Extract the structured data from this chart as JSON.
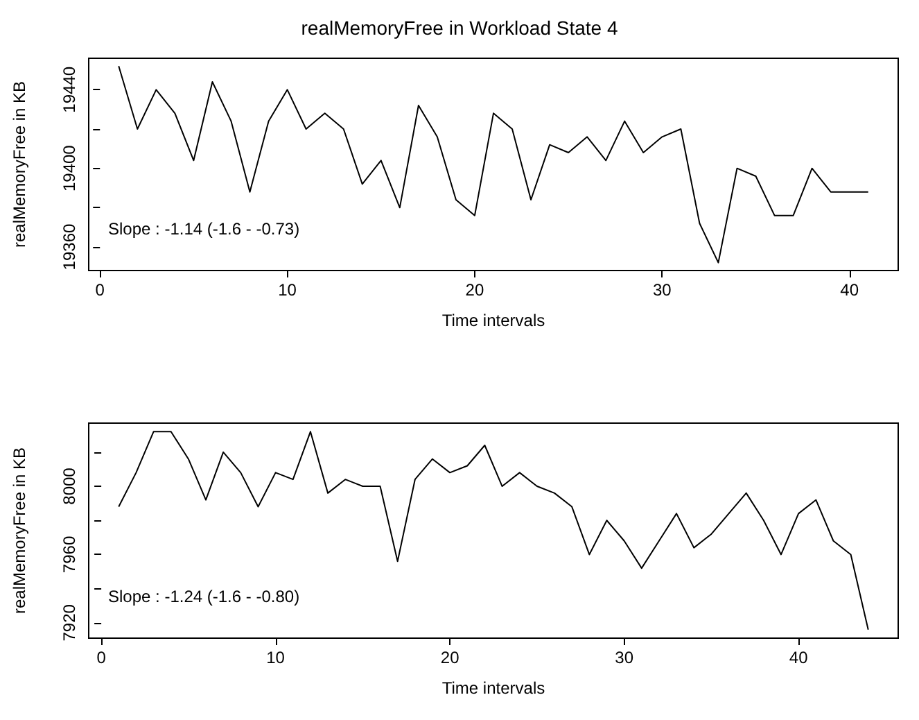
{
  "chart_data": [
    {
      "type": "line",
      "title": "realMemoryFree in Workload State 4",
      "xlabel": "Time intervals",
      "ylabel": "realMemoryFree in KB",
      "marker": "none",
      "x": [
        1,
        2,
        3,
        4,
        5,
        6,
        7,
        8,
        9,
        10,
        11,
        12,
        13,
        14,
        15,
        16,
        17,
        18,
        19,
        20,
        21,
        22,
        23,
        24,
        25,
        26,
        27,
        28,
        29,
        30,
        31,
        32,
        33,
        34,
        35,
        36,
        37,
        38,
        39,
        40,
        41
      ],
      "series": [
        {
          "color": "#000000",
          "values": [
            19452,
            19420,
            19440,
            19428,
            19404,
            19444,
            19424,
            19388,
            19424,
            19440,
            19420,
            19428,
            19420,
            19392,
            19404,
            19380,
            19432,
            19416,
            19384,
            19376,
            19428,
            19420,
            19384,
            19412,
            19408,
            19416,
            19404,
            19424,
            19408,
            19416,
            19420,
            19372,
            19352,
            19400,
            19396,
            19376,
            19376,
            19400,
            19388,
            19388,
            19388
          ]
        }
      ],
      "xlim": [
        -0.6,
        42.6
      ],
      "ylim": [
        19348,
        19456
      ],
      "xticks": [
        0,
        10,
        20,
        30,
        40
      ],
      "yticks": [
        19360,
        {
          "value": 19380,
          "label": null
        },
        19400,
        {
          "value": 19420,
          "label": null
        },
        19440
      ],
      "annotations": [
        "Slope : -1.14 (-1.6 - -0.73)"
      ]
    },
    {
      "type": "line",
      "xlabel": "Time intervals",
      "ylabel": "realMemoryFree in KB",
      "marker": "none",
      "x": [
        1,
        2,
        3,
        4,
        5,
        6,
        7,
        8,
        9,
        10,
        11,
        12,
        13,
        14,
        15,
        16,
        17,
        18,
        19,
        20,
        21,
        22,
        23,
        24,
        25,
        26,
        27,
        28,
        29,
        30,
        31,
        32,
        33,
        34,
        35,
        36,
        37,
        38,
        39,
        40,
        41,
        42,
        43,
        44
      ],
      "series": [
        {
          "color": "#000000",
          "values": [
            7988,
            8008,
            8032,
            8032,
            8016,
            7992,
            8020,
            8008,
            7988,
            8008,
            8004,
            8032,
            7996,
            8004,
            8000,
            8000,
            7956,
            8004,
            8016,
            8008,
            8012,
            8024,
            8000,
            8008,
            8000,
            7996,
            7988,
            7960,
            7980,
            7968,
            7952,
            7968,
            7984,
            7964,
            7972,
            7984,
            7996,
            7980,
            7960,
            7984,
            7992,
            7968,
            7960,
            7916
          ]
        }
      ],
      "xlim": [
        -0.72,
        45.72
      ],
      "ylim": [
        7911,
        8037
      ],
      "xticks": [
        0,
        10,
        20,
        30,
        40
      ],
      "yticks": [
        7920,
        {
          "value": 7940,
          "label": null
        },
        7960,
        {
          "value": 7980,
          "label": null
        },
        8000,
        {
          "value": 8020,
          "label": null
        }
      ],
      "annotations": [
        "Slope : -1.24 (-1.6 - -0.80)"
      ]
    }
  ]
}
